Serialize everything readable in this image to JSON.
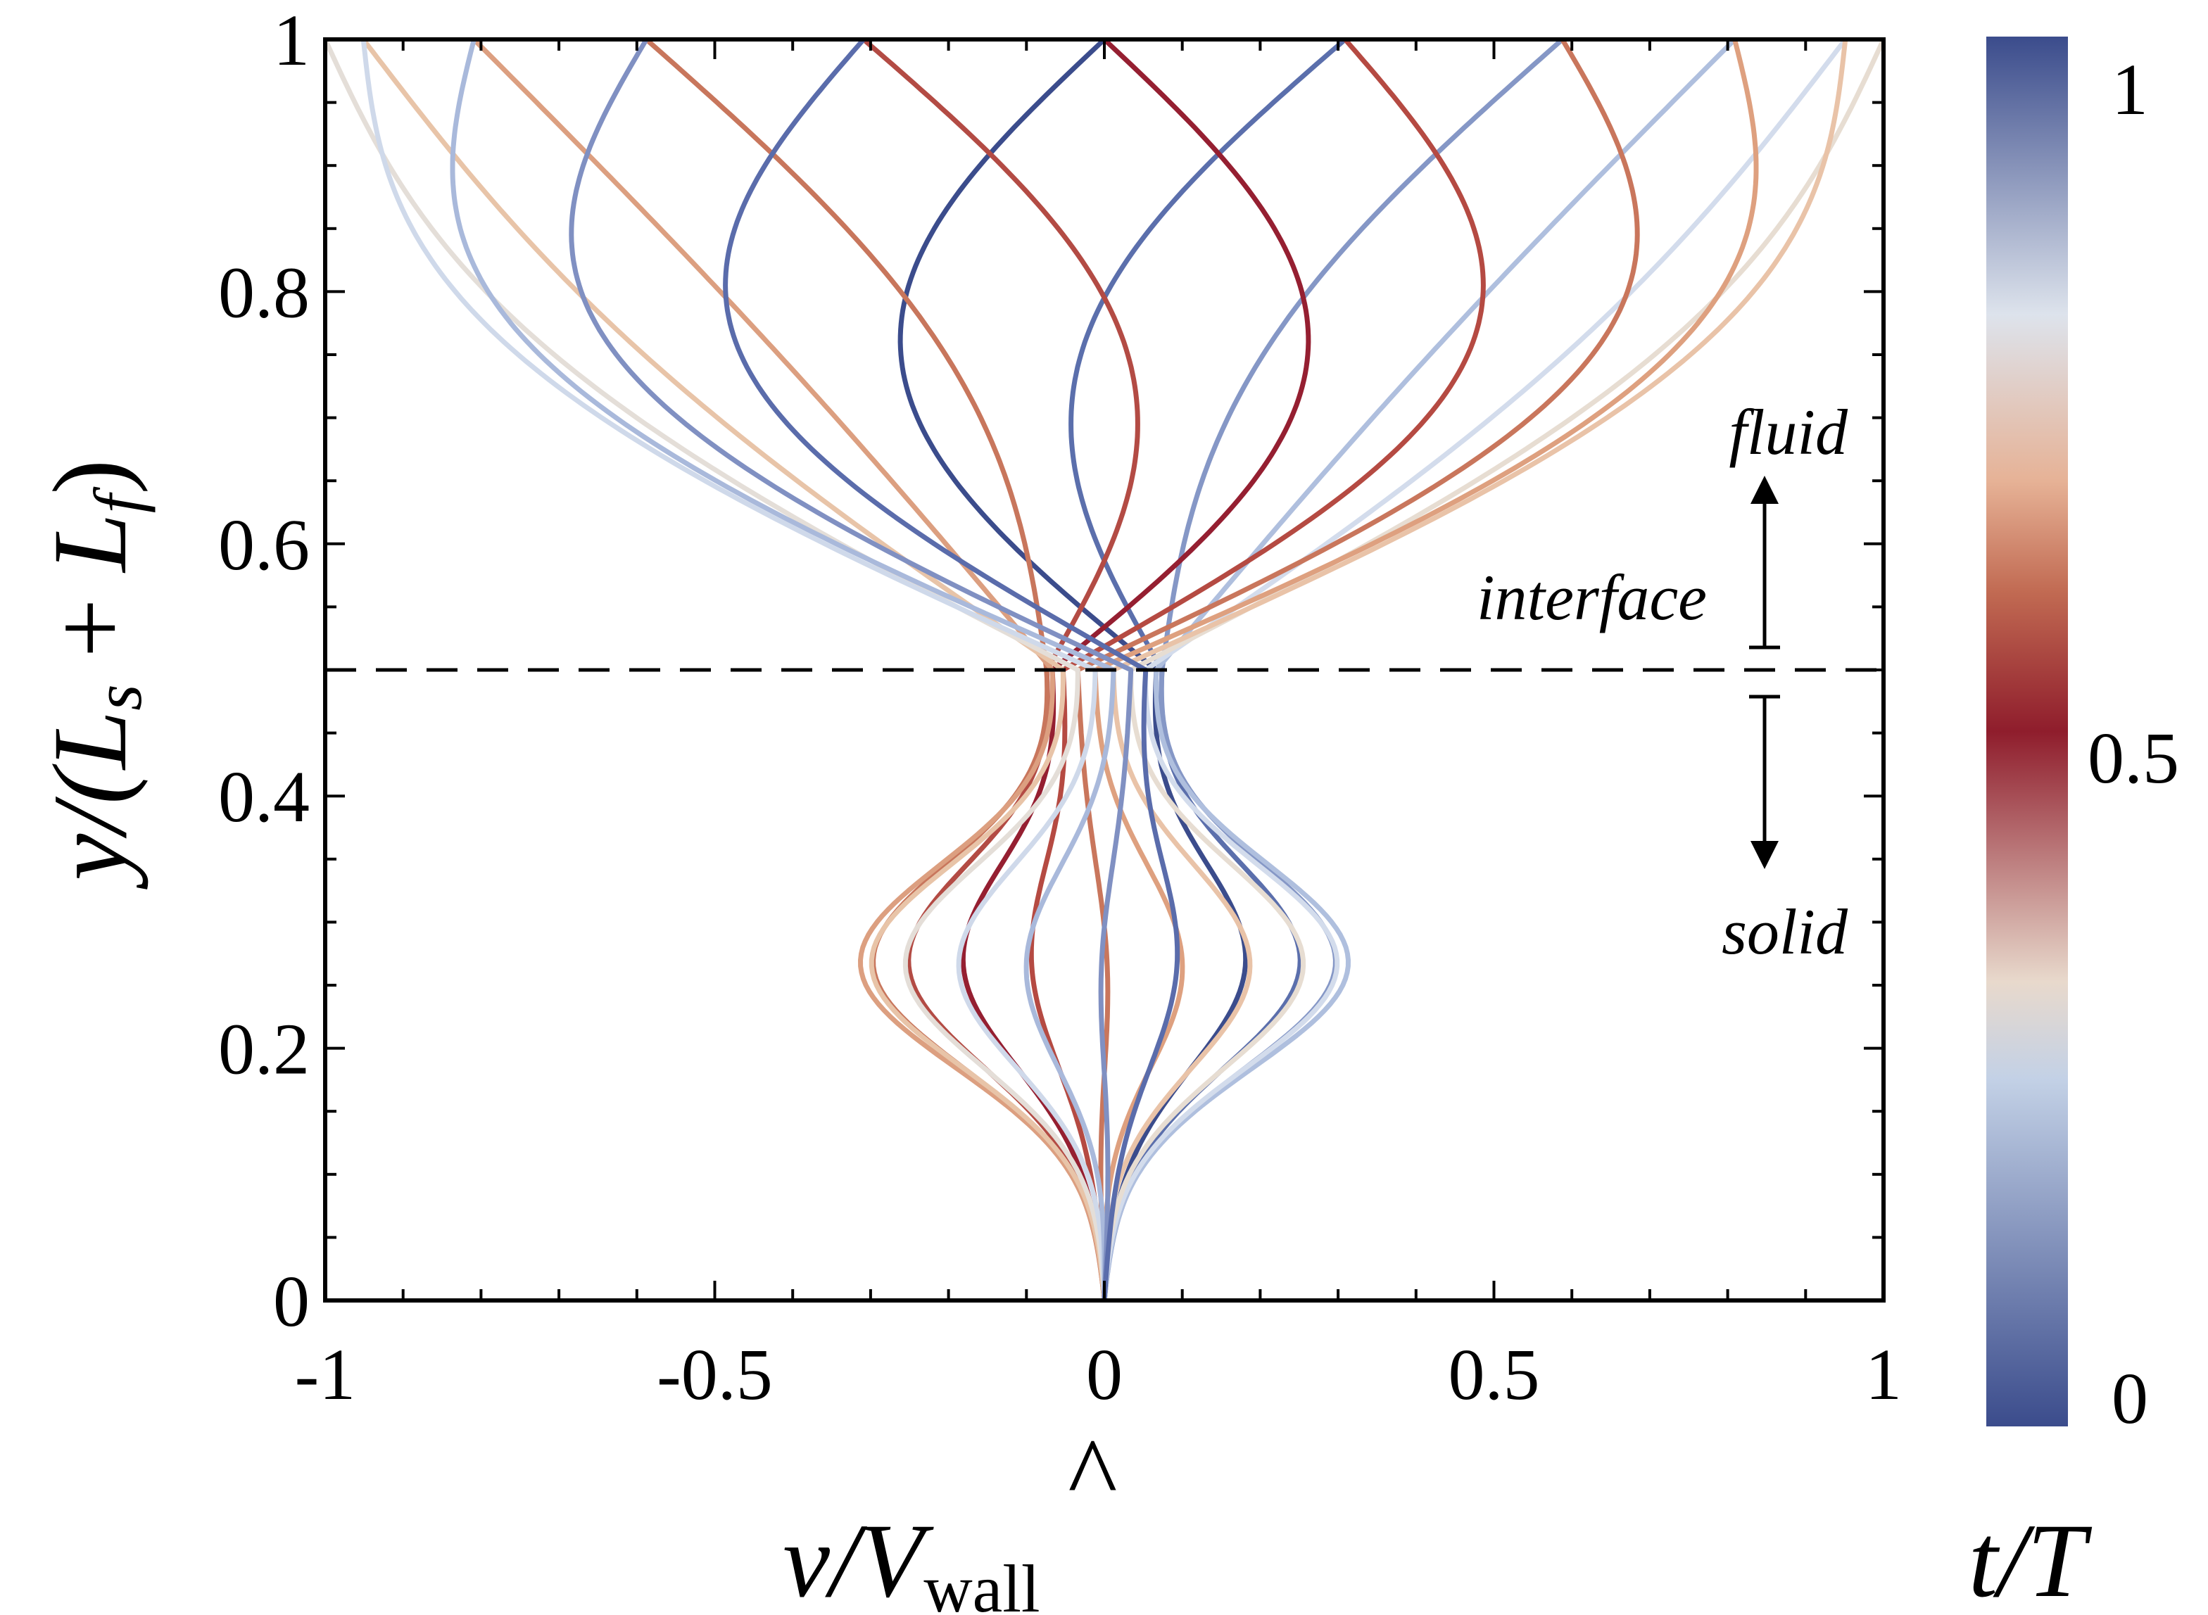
{
  "chart_data": {
    "type": "line",
    "xlabel": "v/V̂wall",
    "ylabel": "y/(Ls + Lf)",
    "xlim": [
      -1,
      1
    ],
    "ylim": [
      0,
      1
    ],
    "x_ticks": [
      -1,
      -0.5,
      0,
      0.5,
      1
    ],
    "x_tick_labels": [
      "-1",
      "-0.5",
      "0",
      "0.5",
      "1"
    ],
    "y_ticks": [
      0,
      0.2,
      0.4,
      0.6,
      0.8,
      1
    ],
    "y_tick_labels": [
      "0",
      "0.2",
      "0.4",
      "0.6",
      "0.8",
      "1"
    ],
    "grid": false,
    "interface_line": {
      "y": 0.5,
      "style": "dashed"
    },
    "annotations": {
      "fluid": "fluid",
      "interface": "interface",
      "solid": "solid"
    },
    "colorbar": {
      "label": "t/T",
      "range": [
        0,
        1
      ],
      "tick_labels": [
        "0",
        "0.5",
        "1"
      ],
      "colors": [
        "#3b4c8c",
        "#c3d1e6",
        "#e8d9cc",
        "#8f1d2c",
        "#c16a52",
        "#e6b296",
        "#dde3ec",
        "#3b4c8c"
      ],
      "stops": [
        0,
        0.25,
        0.32,
        0.5,
        0.6,
        0.68,
        0.8,
        1
      ]
    },
    "profile_params": {
      "wall_velocity_amplitude": 1.0,
      "interface_velocity_amplitude": 0.075,
      "solid_bulge_amplitude": 0.28,
      "bulge_y": 0.27
    },
    "series": [
      {
        "t": 0.0,
        "color": "#3b4c8c"
      },
      {
        "t": 0.05,
        "color": "#5b6fac"
      },
      {
        "t": 0.1,
        "color": "#8597c6"
      },
      {
        "t": 0.15,
        "color": "#afbfde"
      },
      {
        "t": 0.2,
        "color": "#d3dcec"
      },
      {
        "t": 0.25,
        "color": "#e7ddd2"
      },
      {
        "t": 0.3,
        "color": "#e9c3a8"
      },
      {
        "t": 0.35,
        "color": "#dea07f"
      },
      {
        "t": 0.4,
        "color": "#c9765c"
      },
      {
        "t": 0.45,
        "color": "#b54a42"
      },
      {
        "t": 0.5,
        "color": "#951f31"
      },
      {
        "t": 0.55,
        "color": "#b34b44"
      },
      {
        "t": 0.6,
        "color": "#c8765c"
      },
      {
        "t": 0.65,
        "color": "#dc9f80"
      },
      {
        "t": 0.7,
        "color": "#e8c4a8"
      },
      {
        "t": 0.75,
        "color": "#e4ded8"
      },
      {
        "t": 0.8,
        "color": "#cfd9ea"
      },
      {
        "t": 0.85,
        "color": "#a9b9db"
      },
      {
        "t": 0.9,
        "color": "#8090c2"
      },
      {
        "t": 0.95,
        "color": "#5a6cab"
      }
    ]
  }
}
